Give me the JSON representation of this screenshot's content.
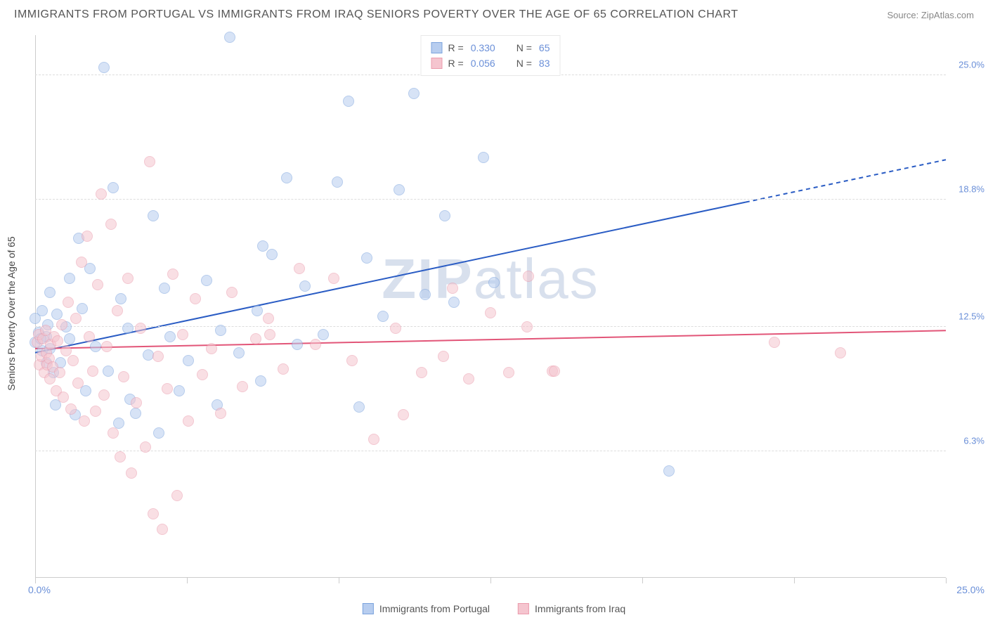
{
  "title": "IMMIGRANTS FROM PORTUGAL VS IMMIGRANTS FROM IRAQ SENIORS POVERTY OVER THE AGE OF 65 CORRELATION CHART",
  "source_label": "Source: ",
  "source_value": "ZipAtlas.com",
  "y_axis_label": "Seniors Poverty Over the Age of 65",
  "chart": {
    "type": "scatter",
    "xlim": [
      0,
      25
    ],
    "ylim": [
      0,
      27
    ],
    "y_ticks": [
      6.3,
      12.5,
      18.8,
      25.0
    ],
    "y_tick_labels": [
      "6.3%",
      "12.5%",
      "18.8%",
      "25.0%"
    ],
    "x_tick_positions": [
      0,
      4.17,
      8.33,
      12.5,
      16.67,
      20.83,
      25
    ],
    "x_origin_label": "0.0%",
    "x_max_label": "25.0%",
    "background_color": "#ffffff",
    "grid_color": "#dddddd",
    "axis_tick_color": "#6a8fd8",
    "marker_radius": 8,
    "marker_opacity": 0.55,
    "series": [
      {
        "id": "portugal",
        "label": "Immigrants from Portugal",
        "color_fill": "#b7cdef",
        "color_stroke": "#7ba3dd",
        "r_value": "0.330",
        "n_value": "65",
        "trend": {
          "x1": 0,
          "y1": 11.2,
          "x2": 25,
          "y2": 20.8,
          "solid_until_x": 19.5,
          "color": "#2a5cc4",
          "width": 2
        },
        "points": [
          [
            0,
            11.7
          ],
          [
            0,
            12.9
          ],
          [
            0.1,
            12.2
          ],
          [
            0.2,
            11.3
          ],
          [
            0.2,
            13.3
          ],
          [
            0.3,
            12
          ],
          [
            0.3,
            10.7
          ],
          [
            0.35,
            12.6
          ],
          [
            0.4,
            11.4
          ],
          [
            0.4,
            14.2
          ],
          [
            0.5,
            10.2
          ],
          [
            0.55,
            8.6
          ],
          [
            0.6,
            13.1
          ],
          [
            0.7,
            10.7
          ],
          [
            0.85,
            12.5
          ],
          [
            0.95,
            11.9
          ],
          [
            0.95,
            14.9
          ],
          [
            1.1,
            8.1
          ],
          [
            1.2,
            16.9
          ],
          [
            1.3,
            13.4
          ],
          [
            1.38,
            9.3
          ],
          [
            1.5,
            15.4
          ],
          [
            1.65,
            11.5
          ],
          [
            1.9,
            25.4
          ],
          [
            2.0,
            10.3
          ],
          [
            2.15,
            19.4
          ],
          [
            2.3,
            7.7
          ],
          [
            2.35,
            13.9
          ],
          [
            2.55,
            12.4
          ],
          [
            2.6,
            8.9
          ],
          [
            2.75,
            8.2
          ],
          [
            3.1,
            11.1
          ],
          [
            3.25,
            18.0
          ],
          [
            3.4,
            7.2
          ],
          [
            3.55,
            14.4
          ],
          [
            3.7,
            12.0
          ],
          [
            3.95,
            9.3
          ],
          [
            4.2,
            10.8
          ],
          [
            4.7,
            14.8
          ],
          [
            5.0,
            8.6
          ],
          [
            5.35,
            26.9
          ],
          [
            5.6,
            11.2
          ],
          [
            6.1,
            13.3
          ],
          [
            6.2,
            9.8
          ],
          [
            6.5,
            16.1
          ],
          [
            6.9,
            19.9
          ],
          [
            7.2,
            11.6
          ],
          [
            7.4,
            14.5
          ],
          [
            7.9,
            12.1
          ],
          [
            8.3,
            19.7
          ],
          [
            8.6,
            23.7
          ],
          [
            8.9,
            8.5
          ],
          [
            9.1,
            15.9
          ],
          [
            9.55,
            13.0
          ],
          [
            10.0,
            19.3
          ],
          [
            10.4,
            24.1
          ],
          [
            10.7,
            14.1
          ],
          [
            11.25,
            18.0
          ],
          [
            11.5,
            13.7
          ],
          [
            12.3,
            20.9
          ],
          [
            12.6,
            14.7
          ],
          [
            17.4,
            5.3
          ],
          [
            6.25,
            16.5
          ],
          [
            5.1,
            12.3
          ],
          [
            0.15,
            11.9
          ]
        ]
      },
      {
        "id": "iraq",
        "label": "Immigrants from Iraq",
        "color_fill": "#f5c5cf",
        "color_stroke": "#eb9bac",
        "r_value": "0.056",
        "n_value": "83",
        "trend": {
          "x1": 0,
          "y1": 11.4,
          "x2": 25,
          "y2": 12.3,
          "solid_until_x": 25,
          "color": "#e25578",
          "width": 2
        },
        "points": [
          [
            0.05,
            11.7
          ],
          [
            0.1,
            12.1
          ],
          [
            0.12,
            10.6
          ],
          [
            0.18,
            11.0
          ],
          [
            0.22,
            11.9
          ],
          [
            0.25,
            10.2
          ],
          [
            0.28,
            12.3
          ],
          [
            0.3,
            11.2
          ],
          [
            0.33,
            10.6
          ],
          [
            0.38,
            10.9
          ],
          [
            0.4,
            9.9
          ],
          [
            0.43,
            11.6
          ],
          [
            0.48,
            10.5
          ],
          [
            0.52,
            12.0
          ],
          [
            0.58,
            9.3
          ],
          [
            0.62,
            11.8
          ],
          [
            0.68,
            10.2
          ],
          [
            0.73,
            12.6
          ],
          [
            0.78,
            9.0
          ],
          [
            0.85,
            11.3
          ],
          [
            0.9,
            13.7
          ],
          [
            0.98,
            8.4
          ],
          [
            1.05,
            10.8
          ],
          [
            1.12,
            12.9
          ],
          [
            1.18,
            9.7
          ],
          [
            1.28,
            15.7
          ],
          [
            1.35,
            7.8
          ],
          [
            1.42,
            17.0
          ],
          [
            1.48,
            12.0
          ],
          [
            1.58,
            10.3
          ],
          [
            1.65,
            8.3
          ],
          [
            1.72,
            14.6
          ],
          [
            1.82,
            19.1
          ],
          [
            1.9,
            9.1
          ],
          [
            1.97,
            11.5
          ],
          [
            2.08,
            17.6
          ],
          [
            2.15,
            7.2
          ],
          [
            2.25,
            13.3
          ],
          [
            2.33,
            6.0
          ],
          [
            2.43,
            10.0
          ],
          [
            2.55,
            14.9
          ],
          [
            2.65,
            5.2
          ],
          [
            2.78,
            8.7
          ],
          [
            2.9,
            12.4
          ],
          [
            3.02,
            6.5
          ],
          [
            3.15,
            20.7
          ],
          [
            3.25,
            3.2
          ],
          [
            3.38,
            11.0
          ],
          [
            3.5,
            2.4
          ],
          [
            3.62,
            9.4
          ],
          [
            3.78,
            15.1
          ],
          [
            3.9,
            4.1
          ],
          [
            4.05,
            12.1
          ],
          [
            4.2,
            7.8
          ],
          [
            4.4,
            13.9
          ],
          [
            4.6,
            10.1
          ],
          [
            4.85,
            11.4
          ],
          [
            5.1,
            8.2
          ],
          [
            5.4,
            14.2
          ],
          [
            5.7,
            9.5
          ],
          [
            6.05,
            11.9
          ],
          [
            6.4,
            12.9
          ],
          [
            6.8,
            10.4
          ],
          [
            7.25,
            15.4
          ],
          [
            7.7,
            11.6
          ],
          [
            8.2,
            14.9
          ],
          [
            8.7,
            10.8
          ],
          [
            9.3,
            6.9
          ],
          [
            9.9,
            12.4
          ],
          [
            10.1,
            8.1
          ],
          [
            10.6,
            10.2
          ],
          [
            11.2,
            11.0
          ],
          [
            11.45,
            14.4
          ],
          [
            11.9,
            9.9
          ],
          [
            12.5,
            13.2
          ],
          [
            13.0,
            10.2
          ],
          [
            13.5,
            12.5
          ],
          [
            13.55,
            15.0
          ],
          [
            14.2,
            10.3
          ],
          [
            14.25,
            10.3
          ],
          [
            20.3,
            11.7
          ],
          [
            22.1,
            11.2
          ],
          [
            6.45,
            12.1
          ]
        ]
      }
    ]
  },
  "legend_top": {
    "r_label": "R =",
    "n_label": "N ="
  },
  "watermark": {
    "part1": "ZIP",
    "part2": "atlas"
  }
}
